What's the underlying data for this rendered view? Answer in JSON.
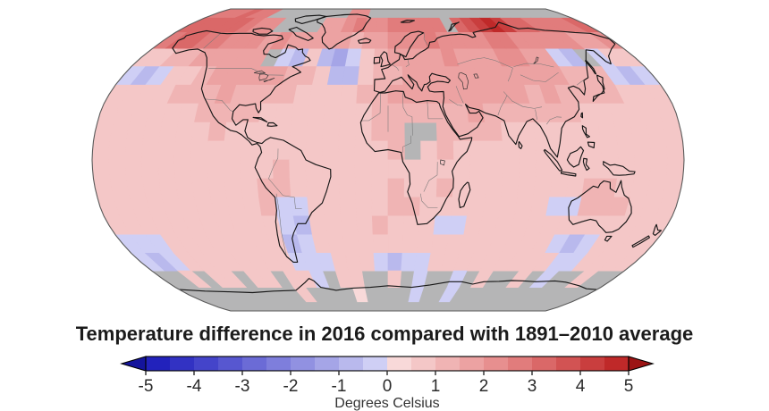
{
  "title": "Temperature difference in 2016 compared with 1891–2010 average",
  "colorbar": {
    "label": "Degrees Celsius",
    "ticks": [
      "-5",
      "-4",
      "-3",
      "-2",
      "-1",
      "0",
      "1",
      "2",
      "3",
      "4",
      "5"
    ],
    "min": -5,
    "max": 5,
    "step": 0.5,
    "segment_colors": [
      "#2222bc",
      "#3232c3",
      "#4444ca",
      "#5757d0",
      "#6b6bd6",
      "#7e7edc",
      "#9191e1",
      "#a5a5e7",
      "#b9b9ed",
      "#cfcff5",
      "#f8d9d9",
      "#f4c7c7",
      "#f0b4b4",
      "#eca2a2",
      "#e78f8f",
      "#e17c7c",
      "#da6868",
      "#d25353",
      "#c93e3e",
      "#bf2929"
    ],
    "left_arrow_color": "#14149c",
    "right_arrow_color": "#9c1414",
    "outline_color": "#000000"
  },
  "map": {
    "no_data_color": "#b5b5b6",
    "coastline_color": "#161616",
    "country_border_color": "#777777",
    "lake_color": "#333333",
    "projection_outline_color": "#5a5a5a",
    "background_color": "#ffffff"
  },
  "chart_data": {
    "type": "heatmap",
    "projection": "robinson",
    "title": "Temperature difference in 2016 compared with 1891–2010 average",
    "units": "Degrees Celsius",
    "value_range": [
      -5,
      5
    ],
    "lon_start": -180,
    "lat_start": 90,
    "lon_step": 10,
    "lat_step": 10,
    "no_data": null,
    "grid": [
      [
        2.5,
        2.6,
        2.8,
        3.0,
        2.8,
        2.5,
        null,
        null,
        null,
        null,
        null,
        null,
        null,
        null,
        2.0,
        2.2,
        null,
        null,
        null,
        null,
        null,
        null,
        null,
        null,
        null,
        null,
        null,
        null,
        null,
        null,
        null,
        null,
        null,
        null,
        null,
        null
      ],
      [
        3.0,
        3.0,
        3.2,
        3.4,
        3.0,
        2.6,
        2.4,
        2.2,
        null,
        null,
        null,
        null,
        1.8,
        1.8,
        2.2,
        2.5,
        2.3,
        2.2,
        2.5,
        2.8,
        2.6,
        2.8,
        2.8,
        null,
        3.2,
        3.6,
        4.3,
        4.5,
        4.0,
        3.4,
        3.0,
        2.8,
        2.6,
        2.5,
        2.8,
        3.0
      ],
      [
        2.8,
        3.0,
        3.2,
        2.8,
        2.6,
        2.4,
        2.2,
        2.0,
        1.8,
        2.0,
        1.8,
        1.6,
        1.5,
        1.5,
        1.8,
        1.2,
        1.5,
        1.8,
        2.0,
        2.2,
        2.4,
        2.6,
        2.4,
        2.2,
        2.0,
        2.2,
        2.6,
        2.8,
        2.4,
        2.2,
        2.0,
        2.4,
        2.0,
        1.6,
        1.8,
        2.2
      ],
      [
        0.8,
        0.8,
        1.0,
        1.4,
        1.8,
        1.8,
        1.6,
        1.5,
        1.6,
        null,
        -0.4,
        -0.6,
        0.6,
        -0.6,
        -1.2,
        -0.5,
        0.8,
        1.2,
        1.5,
        1.6,
        1.8,
        1.8,
        2.0,
        1.8,
        1.6,
        1.8,
        2.0,
        2.2,
        1.8,
        1.6,
        -0.5,
        -0.7,
        null,
        -0.5,
        0.6,
        0.7
      ],
      [
        -0.5,
        -0.6,
        -0.5,
        0.5,
        0.7,
        1.2,
        1.6,
        1.8,
        1.6,
        1.5,
        1.7,
        1.4,
        1.0,
        0.6,
        -0.7,
        -1.0,
        0.5,
        1.2,
        1.4,
        1.5,
        1.6,
        1.8,
        1.6,
        1.5,
        1.7,
        1.8,
        1.6,
        1.8,
        1.6,
        1.5,
        1.4,
        1.2,
        1.0,
        -0.5,
        -0.7,
        -0.5
      ],
      [
        0.9,
        0.8,
        0.8,
        0.9,
        1.0,
        1.1,
        1.4,
        1.5,
        1.3,
        1.2,
        1.2,
        1.0,
        0.9,
        0.8,
        0.8,
        0.9,
        1.0,
        1.4,
        1.5,
        1.6,
        1.5,
        1.6,
        1.7,
        1.8,
        1.6,
        1.5,
        1.6,
        1.4,
        1.5,
        1.3,
        1.2,
        1.1,
        1.0,
        0.8,
        0.7,
        0.8
      ],
      [
        0.7,
        0.7,
        0.8,
        0.8,
        0.8,
        0.9,
        1.1,
        1.2,
        1.1,
        1.0,
        0.9,
        0.8,
        0.7,
        0.7,
        0.7,
        0.8,
        0.9,
        1.1,
        1.2,
        1.3,
        1.4,
        1.3,
        1.4,
        1.5,
        1.3,
        1.2,
        1.1,
        1.2,
        1.1,
        1.0,
        0.9,
        0.8,
        0.8,
        0.7,
        0.7,
        0.7
      ],
      [
        0.6,
        0.7,
        0.7,
        0.7,
        0.8,
        0.8,
        0.9,
        1.0,
        0.9,
        0.8,
        0.8,
        0.7,
        0.7,
        0.6,
        0.7,
        0.8,
        0.9,
        1.0,
        1.1,
        null,
        null,
        1.2,
        1.1,
        1.2,
        1.0,
        0.9,
        0.9,
        0.8,
        0.8,
        0.8,
        0.7,
        0.7,
        0.8,
        0.7,
        0.6,
        0.6
      ],
      [
        0.6,
        0.6,
        0.7,
        0.7,
        0.7,
        0.8,
        0.8,
        0.9,
        0.8,
        0.8,
        0.7,
        0.7,
        0.6,
        0.6,
        0.6,
        0.7,
        0.8,
        0.9,
        1.0,
        null,
        0.9,
        1.0,
        0.9,
        0.8,
        0.8,
        0.7,
        0.8,
        0.8,
        0.7,
        0.7,
        0.8,
        0.7,
        0.7,
        0.6,
        0.6,
        0.7
      ],
      [
        0.6,
        0.6,
        0.6,
        0.7,
        0.7,
        0.7,
        0.8,
        0.8,
        0.8,
        0.7,
        0.9,
        1.0,
        0.9,
        0.7,
        0.6,
        0.6,
        0.7,
        0.8,
        0.9,
        0.9,
        0.8,
        0.9,
        0.8,
        0.7,
        0.7,
        0.7,
        0.6,
        0.7,
        0.7,
        0.8,
        0.7,
        0.7,
        0.8,
        0.7,
        0.6,
        0.6
      ],
      [
        0.7,
        0.6,
        0.6,
        0.7,
        0.7,
        0.8,
        0.8,
        0.7,
        0.8,
        0.8,
        1.0,
        1.1,
        0.9,
        0.8,
        0.7,
        0.7,
        0.8,
        0.9,
        1.0,
        0.9,
        0.9,
        1.0,
        0.9,
        0.8,
        0.7,
        0.6,
        0.7,
        0.6,
        0.8,
        0.9,
        1.0,
        1.0,
        0.9,
        0.8,
        0.7,
        0.7
      ],
      [
        0.7,
        0.7,
        0.6,
        0.7,
        0.7,
        0.7,
        0.8,
        0.8,
        0.8,
        0.9,
        1.0,
        -0.5,
        -0.4,
        0.8,
        0.8,
        0.7,
        0.8,
        0.9,
        1.0,
        1.0,
        0.9,
        0.8,
        0.7,
        0.6,
        0.7,
        0.7,
        0.6,
        0.7,
        -0.4,
        -0.5,
        1.0,
        1.1,
        1.0,
        0.9,
        0.8,
        0.7
      ],
      [
        0.7,
        0.7,
        0.7,
        0.6,
        0.7,
        0.8,
        0.8,
        0.8,
        0.8,
        0.8,
        0.9,
        -0.5,
        -0.6,
        0.8,
        0.9,
        0.9,
        0.9,
        1.0,
        0.9,
        0.8,
        0.8,
        -0.4,
        -0.4,
        0.7,
        0.7,
        0.6,
        0.7,
        0.7,
        0.8,
        0.9,
        0.9,
        0.9,
        0.8,
        0.8,
        0.9,
        0.8
      ],
      [
        -0.4,
        -0.5,
        -0.4,
        0.7,
        0.6,
        0.7,
        0.7,
        0.7,
        0.8,
        0.8,
        0.8,
        -0.7,
        -0.5,
        0.7,
        0.8,
        0.8,
        0.7,
        0.8,
        0.8,
        0.7,
        0.7,
        0.7,
        0.6,
        0.7,
        0.6,
        0.7,
        0.7,
        0.8,
        0.8,
        -0.5,
        -0.6,
        -0.5,
        0.8,
        0.8,
        0.8,
        0.7
      ],
      [
        -0.5,
        -0.6,
        -0.5,
        0.7,
        0.7,
        0.8,
        0.8,
        0.7,
        0.7,
        0.8,
        0.8,
        -0.5,
        -0.5,
        -0.4,
        0.7,
        0.8,
        0.7,
        -0.5,
        -0.6,
        -0.5,
        -0.4,
        0.7,
        0.7,
        0.8,
        0.7,
        0.7,
        0.8,
        0.7,
        0.7,
        0.8,
        -0.4,
        -0.5,
        0.8,
        0.7,
        0.7,
        0.6
      ],
      [
        null,
        null,
        0.6,
        null,
        0.6,
        0.6,
        null,
        0.7,
        0.7,
        null,
        0.7,
        0.7,
        -0.4,
        null,
        0.6,
        0.6,
        null,
        null,
        0.7,
        null,
        -0.4,
        null,
        null,
        -0.5,
        null,
        0.6,
        null,
        null,
        0.6,
        null,
        -0.4,
        null,
        null,
        0.6,
        null,
        null
      ],
      [
        null,
        null,
        null,
        null,
        null,
        null,
        null,
        null,
        null,
        null,
        0.5,
        null,
        null,
        null,
        null,
        0.4,
        null,
        null,
        null,
        null,
        -0.3,
        null,
        null,
        -0.4,
        null,
        null,
        null,
        null,
        null,
        null,
        null,
        null,
        null,
        null,
        null,
        null
      ],
      [
        null,
        null,
        null,
        null,
        null,
        null,
        null,
        null,
        null,
        null,
        null,
        null,
        null,
        null,
        null,
        null,
        null,
        null,
        null,
        null,
        null,
        null,
        null,
        null,
        null,
        null,
        null,
        null,
        null,
        null,
        null,
        null,
        null,
        null,
        null,
        null
      ]
    ]
  }
}
